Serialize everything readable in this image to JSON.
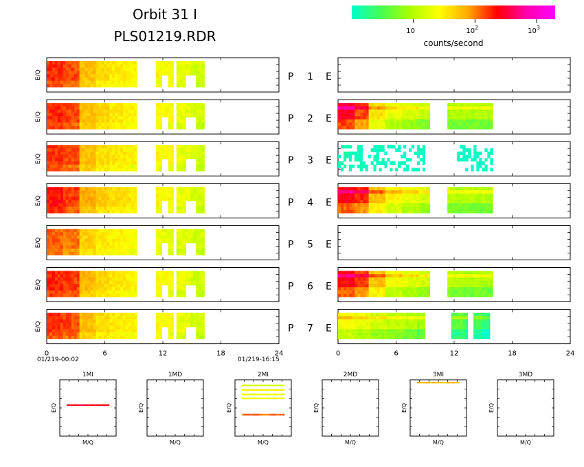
{
  "header": {
    "title_line1": "Orbit 31 I",
    "title_line2": "PLS01219.RDR",
    "colorbar_label": "counts/second",
    "colorbar_ticks": [
      {
        "base": "10",
        "exp": ""
      },
      {
        "base": "10",
        "exp": "2"
      },
      {
        "base": "10",
        "exp": "3"
      }
    ],
    "colorbar_tick_values": [
      10,
      100,
      1000
    ],
    "colorbar_range": [
      1,
      2000
    ],
    "colorbar_scale": "log",
    "colorbar_stops": [
      "#00ffcc",
      "#44ff55",
      "#aaff00",
      "#ffff00",
      "#ffaa00",
      "#ff0000",
      "#ff00aa",
      "#ff00ff"
    ]
  },
  "labels": {
    "eq": "E/Q",
    "mq": "M/Q",
    "p": "P",
    "e": "E",
    "start_time": "01/219-00:02",
    "end_time": "01/219-16:15"
  },
  "chart_data": {
    "type": "heatmap",
    "x_ticks": [
      "0",
      "6",
      "12",
      "18",
      "24"
    ],
    "x_tick_values": [
      0,
      6,
      12,
      18,
      24
    ],
    "xlim": [
      0,
      24
    ],
    "scale": "log counts/second",
    "rows": [
      {
        "id": "1",
        "P": {
          "segments": [
            [
              0,
              9.3
            ],
            [
              11.3,
              13.1
            ],
            [
              13.4,
              16.3
            ]
          ],
          "levels": [
            180,
            150,
            60,
            40,
            35,
            30,
            30,
            25,
            20,
            15
          ]
        },
        "E": {
          "segments": [],
          "levels": []
        }
      },
      {
        "id": "2",
        "P": {
          "segments": [
            [
              0,
              9.3
            ],
            [
              11.3,
              13.1
            ],
            [
              13.4,
              16.3
            ]
          ],
          "levels": [
            180,
            150,
            60,
            45,
            35,
            30,
            28,
            25,
            20,
            15
          ]
        },
        "E": {
          "segments": [
            [
              0,
              9.5
            ],
            [
              11.3,
              16.0
            ]
          ],
          "levels": [
            300,
            150,
            40,
            20,
            15,
            12,
            10,
            10,
            10,
            10
          ]
        }
      },
      {
        "id": "3",
        "P": {
          "segments": [
            [
              0,
              9.3
            ],
            [
              11.3,
              13.1
            ],
            [
              13.4,
              16.3
            ]
          ],
          "levels": [
            170,
            140,
            60,
            40,
            35,
            30,
            28,
            25,
            20,
            15
          ]
        },
        "E": {
          "segments": [
            [
              0,
              9.0
            ],
            [
              12.3,
              16.0
            ]
          ],
          "levels": [
            1.2,
            1.2,
            1.1,
            1,
            1,
            1,
            1,
            1,
            1,
            1
          ]
        }
      },
      {
        "id": "4",
        "P": {
          "segments": [
            [
              0,
              9.3
            ],
            [
              11.3,
              13.1
            ],
            [
              13.4,
              16.3
            ]
          ],
          "levels": [
            220,
            160,
            70,
            50,
            40,
            35,
            30,
            25,
            20,
            15
          ]
        },
        "E": {
          "segments": [
            [
              0,
              9.5
            ],
            [
              11.3,
              16.0
            ]
          ],
          "levels": [
            250,
            180,
            60,
            30,
            20,
            15,
            12,
            10,
            10,
            10
          ]
        }
      },
      {
        "id": "5",
        "P": {
          "segments": [
            [
              0,
              9.3
            ],
            [
              11.3,
              13.1
            ],
            [
              13.4,
              16.3
            ]
          ],
          "levels": [
            130,
            110,
            50,
            35,
            30,
            25,
            22,
            20,
            18,
            15
          ]
        },
        "E": {
          "segments": [],
          "levels": []
        }
      },
      {
        "id": "6",
        "P": {
          "segments": [
            [
              0,
              9.3
            ],
            [
              11.3,
              13.1
            ],
            [
              13.4,
              16.3
            ]
          ],
          "levels": [
            190,
            160,
            65,
            45,
            35,
            30,
            28,
            25,
            20,
            15
          ]
        },
        "E": {
          "segments": [
            [
              0,
              9.5
            ],
            [
              11.3,
              16.0
            ]
          ],
          "levels": [
            250,
            160,
            60,
            25,
            18,
            14,
            12,
            10,
            10,
            10
          ]
        }
      },
      {
        "id": "7",
        "P": {
          "segments": [
            [
              0,
              9.3
            ],
            [
              11.3,
              13.1
            ],
            [
              13.4,
              16.3
            ]
          ],
          "levels": [
            170,
            150,
            60,
            40,
            35,
            30,
            28,
            25,
            20,
            15
          ]
        },
        "E": {
          "segments": [
            [
              0,
              9.0
            ],
            [
              11.7,
              13.4
            ],
            [
              14.0,
              15.7
            ]
          ],
          "levels": [
            25,
            20,
            15,
            12,
            10,
            8,
            6,
            4,
            3,
            2
          ]
        }
      }
    ],
    "small_panels": [
      {
        "title": "1MI",
        "xlabel": "M/Q",
        "ylabel": "E/Q",
        "lines": [
          {
            "y": 0.45,
            "level": 300
          }
        ]
      },
      {
        "title": "1MD",
        "xlabel": "M/Q",
        "ylabel": "E/Q",
        "lines": []
      },
      {
        "title": "2MI",
        "xlabel": "M/Q",
        "ylabel": "E/Q",
        "lines": [
          {
            "y": 0.1,
            "level": 15
          },
          {
            "y": 0.18,
            "level": 30
          },
          {
            "y": 0.26,
            "level": 20
          },
          {
            "y": 0.33,
            "level": 25
          },
          {
            "y": 0.62,
            "level": 120
          }
        ]
      },
      {
        "title": "2MD",
        "xlabel": "M/Q",
        "ylabel": "E/Q",
        "lines": []
      },
      {
        "title": "3MI",
        "xlabel": "M/Q",
        "ylabel": "E/Q",
        "lines": [
          {
            "y": 0.05,
            "level": 60
          }
        ]
      },
      {
        "title": "3MD",
        "xlabel": "M/Q",
        "ylabel": "E/Q",
        "lines": []
      }
    ]
  }
}
